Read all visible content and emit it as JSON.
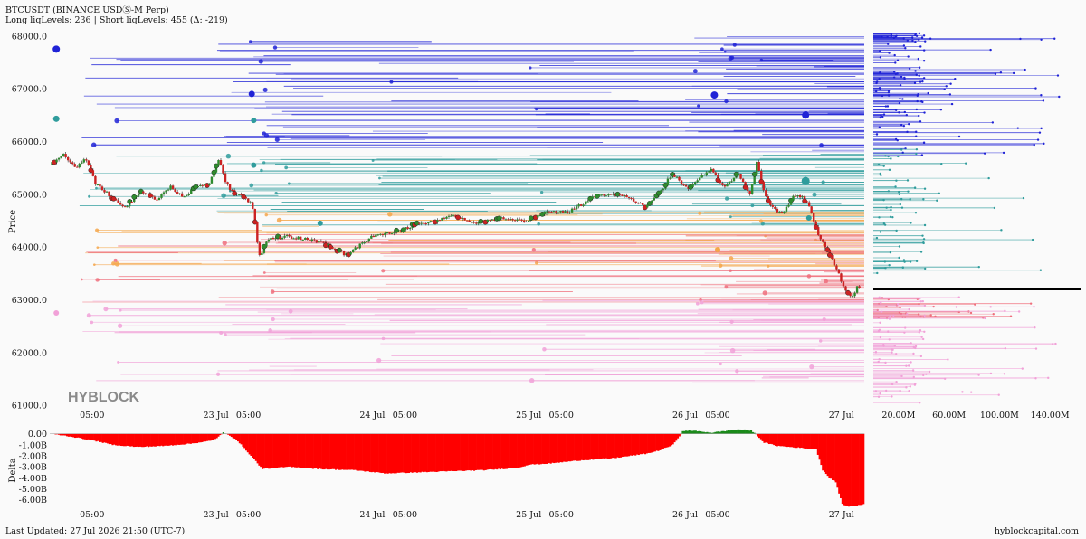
{
  "header": {
    "title": "BTCUSDT (BINANCE USDⓈ-M Perp)",
    "subtitle": "Long liqLevels: 236 | Short liqLevels: 455 (Δ: -219)"
  },
  "footer": {
    "last_updated": "Last Updated: 27 Jul 2026 21:50 (UTC-7)",
    "site": "hyblockcapital.com"
  },
  "watermark": "HYBLOCK",
  "colors": {
    "short_high": "#1f22d6",
    "short_mid": "#2f9c9c",
    "long_mid": "#f4a64a",
    "long_low": "#ef6f7c",
    "long_lowest": "#f1a1d8",
    "candle_up": "#2e8b2e",
    "candle_down": "#cc2222",
    "delta_negative": "#ff0000",
    "delta_positive": "#1a8a1a",
    "current_price_line": "#000000"
  },
  "chart_data": [
    {
      "type": "candlestick",
      "name": "price",
      "ylabel": "Price",
      "ylim": [
        60950,
        68150
      ],
      "y_ticks": [
        "68000.0",
        "67000.0",
        "66000.0",
        "65000.0",
        "64000.0",
        "63000.0",
        "62000.0",
        "61000.0"
      ],
      "y_tick_values": [
        68000,
        67000,
        66000,
        65000,
        64000,
        63000,
        62000,
        61000
      ],
      "x_ticks": [
        "05:00",
        "23 Jul",
        "05:00",
        "24 Jul",
        "05:00",
        "25 Jul",
        "05:00",
        "26 Jul",
        "05:00",
        "27 Jul"
      ],
      "x_tick_hours": [
        5,
        24,
        29,
        48,
        53,
        72,
        77,
        96,
        101,
        120
      ],
      "x_range_hours": [
        -1.5,
        123.5
      ],
      "price_path": {
        "hours": [
          -1.5,
          0.5,
          2.5,
          4,
          5.5,
          8,
          10,
          12.5,
          15,
          17,
          19,
          21,
          23,
          24.5,
          25.5,
          26.5,
          28,
          29.5,
          30,
          30.6,
          32,
          35,
          40,
          44,
          48,
          52,
          55,
          58,
          60,
          64,
          68,
          72,
          75,
          78,
          82,
          86,
          90,
          92,
          94,
          95.5,
          96.5,
          98,
          100,
          102,
          104,
          106,
          107,
          108,
          109,
          110,
          111,
          112,
          113,
          114,
          115,
          116.5,
          117.5,
          118.5,
          119.5,
          120.5,
          121.5,
          122.5,
          123.5
        ],
        "prices": [
          65550,
          65750,
          65500,
          65700,
          65200,
          64950,
          64750,
          65050,
          64900,
          65150,
          64950,
          65150,
          65200,
          65700,
          65200,
          65050,
          64950,
          64800,
          64500,
          63800,
          64150,
          64200,
          64100,
          63850,
          64200,
          64300,
          64450,
          64500,
          64600,
          64450,
          64550,
          64500,
          64700,
          64650,
          64950,
          65000,
          64750,
          65000,
          65400,
          65200,
          65100,
          65300,
          65500,
          65100,
          65400,
          65000,
          65600,
          65100,
          64800,
          64700,
          64600,
          64850,
          65000,
          64950,
          64800,
          64200,
          64000,
          63800,
          63500,
          63200,
          63050,
          63250,
          63200
        ]
      },
      "current_price": 63200,
      "liquidation_levels": {
        "short_count": 455,
        "long_count": 236,
        "bands": [
          {
            "color": "short_high",
            "from": 66600,
            "to": 68000
          },
          {
            "color": "short_high",
            "from": 65800,
            "to": 66600
          },
          {
            "color": "short_mid",
            "from": 64400,
            "to": 65800
          },
          {
            "color": "long_mid",
            "from": 63600,
            "to": 64700
          },
          {
            "color": "long_low",
            "from": 62950,
            "to": 64250
          },
          {
            "color": "long_lowest",
            "from": 61400,
            "to": 63000
          }
        ]
      }
    },
    {
      "type": "bar",
      "name": "liquidation_volume_by_level",
      "x_ticks": [
        "20.00M",
        "60.00M",
        "100.00M",
        "140.00M"
      ],
      "x_tick_values": [
        20,
        60,
        100,
        140
      ],
      "xlim": [
        0,
        165
      ],
      "unit": "M"
    },
    {
      "type": "area",
      "name": "delta",
      "ylabel": "Delta",
      "y_ticks": [
        "0.00",
        "-1.00B",
        "-2.00B",
        "-3.00B",
        "-4.00B",
        "-5.00B",
        "-6.00B"
      ],
      "y_tick_values": [
        0,
        -1,
        -2,
        -3,
        -4,
        -5,
        -6
      ],
      "ylim": [
        -6.6,
        0.3
      ],
      "x_ticks": [
        "05:00",
        "23 Jul",
        "05:00",
        "24 Jul",
        "05:00",
        "25 Jul",
        "05:00",
        "26 Jul",
        "05:00",
        "27 Jul"
      ],
      "series": {
        "hours": [
          -1.5,
          1,
          3,
          5,
          8,
          12,
          16,
          20,
          23.5,
          25,
          27,
          30,
          31,
          35,
          40,
          45,
          50,
          55,
          60,
          65,
          70,
          72,
          75,
          80,
          85,
          90,
          92,
          94,
          95.5,
          96.5,
          100,
          104,
          106,
          107,
          108,
          110,
          112,
          114,
          116,
          117,
          118,
          119,
          120,
          121,
          123.5
        ],
        "values": [
          0,
          -0.2,
          -0.4,
          -0.6,
          -1.0,
          -1.2,
          -1.1,
          -0.9,
          -0.6,
          0.1,
          -0.5,
          -2.5,
          -3.2,
          -3.0,
          -3.2,
          -3.3,
          -3.6,
          -3.5,
          -3.4,
          -3.3,
          -3.1,
          -2.8,
          -2.7,
          -2.4,
          -2.2,
          -1.8,
          -1.5,
          -1.0,
          0.2,
          0.3,
          0.1,
          0.4,
          0.3,
          -0.2,
          -0.8,
          -1.1,
          -1.2,
          -1.3,
          -1.4,
          -3.3,
          -4.0,
          -4.4,
          -6.4,
          -6.6,
          -6.4
        ]
      }
    }
  ]
}
